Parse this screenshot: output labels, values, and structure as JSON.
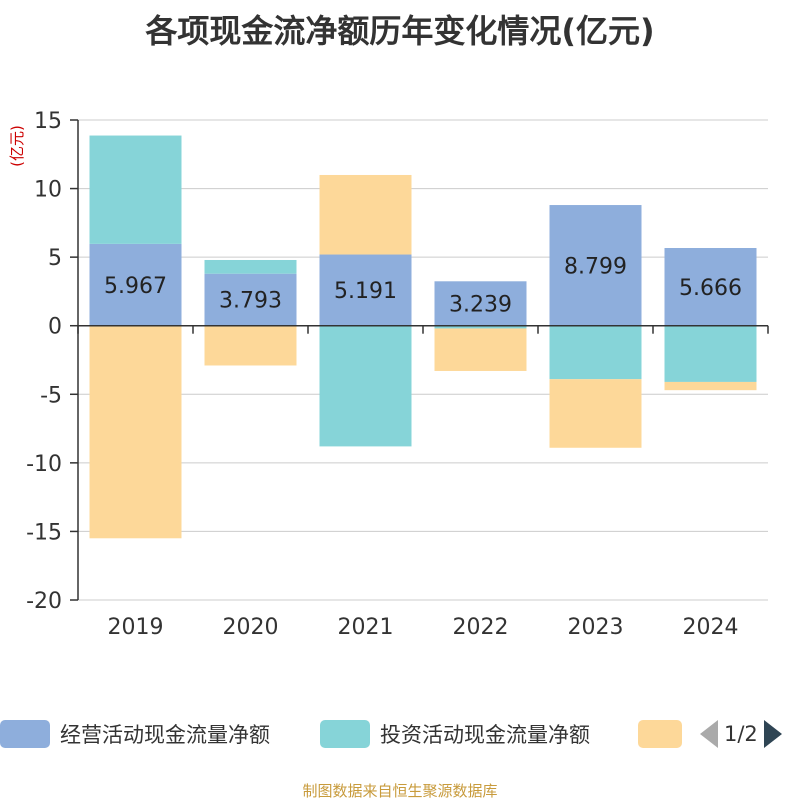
{
  "title": "各项现金流净额历年变化情况(亿元)",
  "source": "制图数据来自恒生聚源数据库",
  "legend": {
    "items": [
      {
        "label": "经营活动现金流量净额",
        "color": "#8eaedc"
      },
      {
        "label": "投资活动现金流量净额",
        "color": "#86d4d8"
      },
      {
        "label": "",
        "color": "#fdd899"
      }
    ],
    "page": "1/2"
  },
  "chart_data": {
    "type": "bar",
    "stacked": true,
    "ylabel": "(亿元)",
    "ylim": [
      -20,
      15
    ],
    "yticks": [
      15,
      10,
      5,
      0,
      -5,
      -10,
      -15,
      -20
    ],
    "categories": [
      "2019",
      "2020",
      "2021",
      "2022",
      "2023",
      "2024"
    ],
    "grid": true,
    "legend_position": "bottom",
    "series": [
      {
        "name": "经营活动现金流量净额",
        "color": "#8eaedc",
        "values": [
          5.967,
          3.793,
          5.191,
          3.239,
          8.799,
          5.666
        ],
        "show_labels": true
      },
      {
        "name": "投资活动现金流量净额",
        "color": "#86d4d8",
        "values": [
          7.9,
          1.0,
          -8.8,
          -0.2,
          -3.9,
          -4.1
        ]
      },
      {
        "name": "",
        "color": "#fdd899",
        "values": [
          -15.5,
          -2.9,
          5.8,
          -3.1,
          -5.0,
          -0.6
        ]
      }
    ]
  }
}
